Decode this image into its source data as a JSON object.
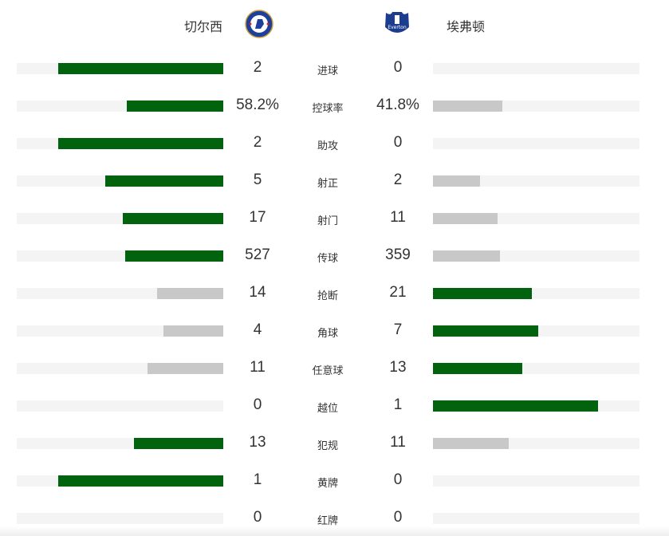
{
  "home": {
    "name": "切尔西",
    "logo": "chelsea-crest-icon"
  },
  "away": {
    "name": "埃弗顿",
    "logo": "everton-crest-icon"
  },
  "colors": {
    "leader": "#02630f",
    "trailer": "#c8c8c8",
    "track": "#f4f4f4"
  },
  "stats": [
    {
      "label": "进球",
      "home": "2",
      "away": "0"
    },
    {
      "label": "控球率",
      "home": "58.2%",
      "away": "41.8%"
    },
    {
      "label": "助攻",
      "home": "2",
      "away": "0"
    },
    {
      "label": "射正",
      "home": "5",
      "away": "2"
    },
    {
      "label": "射门",
      "home": "17",
      "away": "11"
    },
    {
      "label": "传球",
      "home": "527",
      "away": "359"
    },
    {
      "label": "抢断",
      "home": "14",
      "away": "21"
    },
    {
      "label": "角球",
      "home": "4",
      "away": "7"
    },
    {
      "label": "任意球",
      "home": "11",
      "away": "13"
    },
    {
      "label": "越位",
      "home": "0",
      "away": "1"
    },
    {
      "label": "犯规",
      "home": "13",
      "away": "11"
    },
    {
      "label": "黄牌",
      "home": "1",
      "away": "0"
    },
    {
      "label": "红牌",
      "home": "0",
      "away": "0"
    }
  ]
}
